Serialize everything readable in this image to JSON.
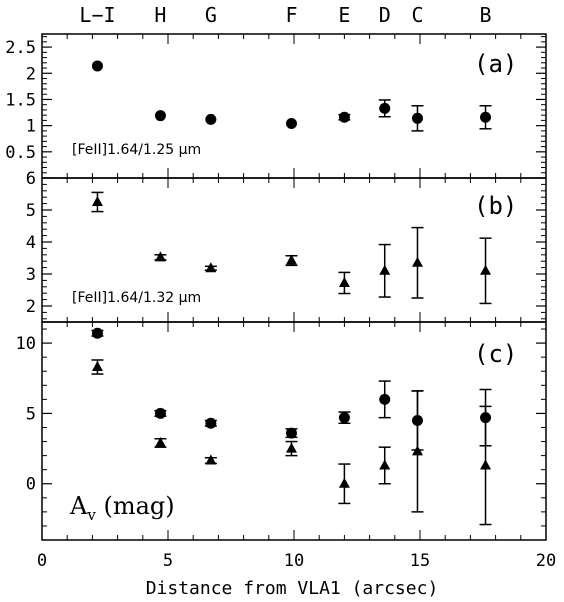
{
  "chart_data": {
    "type": "scatter",
    "xlabel": "Distance from VLA1 (arcsec)",
    "xlim": [
      0,
      20
    ],
    "xticks": [
      0,
      5,
      10,
      15,
      20
    ],
    "knot_labels": [
      {
        "label": "L−I",
        "x": 2.2
      },
      {
        "label": "H",
        "x": 4.7
      },
      {
        "label": "G",
        "x": 6.7
      },
      {
        "label": "F",
        "x": 9.9
      },
      {
        "label": "E",
        "x": 12.0
      },
      {
        "label": "D",
        "x": 13.6
      },
      {
        "label": "C",
        "x": 14.9
      },
      {
        "label": "B",
        "x": 17.6
      }
    ],
    "panels": [
      {
        "tag": "(a)",
        "label": "[FeII]1.64/1.25 μm",
        "ylim": [
          0,
          2.75
        ],
        "yticks": [
          0.5,
          1,
          1.5,
          2,
          2.5
        ],
        "ytick_labels": [
          "0.5",
          "1",
          "1.5",
          "2",
          "2.5"
        ],
        "series": [
          {
            "marker": "circle",
            "points": [
              {
                "x": 2.2,
                "y": 2.14,
                "err": 0
              },
              {
                "x": 4.7,
                "y": 1.19,
                "err": 0
              },
              {
                "x": 6.7,
                "y": 1.12,
                "err": 0
              },
              {
                "x": 9.9,
                "y": 1.04,
                "err": 0
              },
              {
                "x": 12.0,
                "y": 1.16,
                "err": 0.05
              },
              {
                "x": 13.6,
                "y": 1.33,
                "err": 0.16
              },
              {
                "x": 14.9,
                "y": 1.14,
                "err": 0.24
              },
              {
                "x": 17.6,
                "y": 1.16,
                "err": 0.22
              }
            ]
          }
        ]
      },
      {
        "tag": "(b)",
        "label": "[FeII]1.64/1.32 μm",
        "ylim": [
          1.5,
          6
        ],
        "yticks": [
          2,
          3,
          4,
          5,
          6
        ],
        "ytick_labels": [
          "2",
          "3",
          "4",
          "5",
          "6"
        ],
        "series": [
          {
            "marker": "triangle",
            "points": [
              {
                "x": 2.2,
                "y": 5.25,
                "err": 0.3
              },
              {
                "x": 4.7,
                "y": 3.52,
                "err": 0.08
              },
              {
                "x": 6.7,
                "y": 3.18,
                "err": 0.06
              },
              {
                "x": 9.9,
                "y": 3.42,
                "err": 0.15
              },
              {
                "x": 12.0,
                "y": 2.72,
                "err": 0.33
              },
              {
                "x": 13.6,
                "y": 3.1,
                "err": 0.82
              },
              {
                "x": 14.9,
                "y": 3.35,
                "err": 1.1
              },
              {
                "x": 17.6,
                "y": 3.1,
                "err": 1.02
              }
            ]
          }
        ]
      },
      {
        "tag": "(c)",
        "label": "A",
        "label_sub": "v",
        "label_unit": " (mag)",
        "ylim": [
          -4,
          11.5
        ],
        "yticks": [
          0,
          5,
          10
        ],
        "ytick_labels": [
          "0",
          "5",
          "10"
        ],
        "series": [
          {
            "marker": "circle",
            "points": [
              {
                "x": 2.2,
                "y": 10.7,
                "err": 0.2
              },
              {
                "x": 4.7,
                "y": 5.0,
                "err": 0.2
              },
              {
                "x": 6.7,
                "y": 4.3,
                "err": 0.2
              },
              {
                "x": 9.9,
                "y": 3.6,
                "err": 0.3
              },
              {
                "x": 12.0,
                "y": 4.7,
                "err": 0.4
              },
              {
                "x": 13.6,
                "y": 6.0,
                "err": 1.3
              },
              {
                "x": 14.9,
                "y": 4.5,
                "err": 2.1
              },
              {
                "x": 17.6,
                "y": 4.7,
                "err": 2.0
              }
            ]
          },
          {
            "marker": "triangle",
            "points": [
              {
                "x": 2.2,
                "y": 8.3,
                "err": 0.5
              },
              {
                "x": 4.7,
                "y": 2.9,
                "err": 0.3
              },
              {
                "x": 6.7,
                "y": 1.65,
                "err": 0.2
              },
              {
                "x": 9.9,
                "y": 2.5,
                "err": 0.5
              },
              {
                "x": 12.0,
                "y": 0.0,
                "err": 1.4
              },
              {
                "x": 13.6,
                "y": 1.3,
                "err": 1.3
              },
              {
                "x": 14.9,
                "y": 2.3,
                "err": 4.3
              },
              {
                "x": 17.6,
                "y": 1.3,
                "err": 4.2
              }
            ]
          }
        ]
      }
    ]
  }
}
